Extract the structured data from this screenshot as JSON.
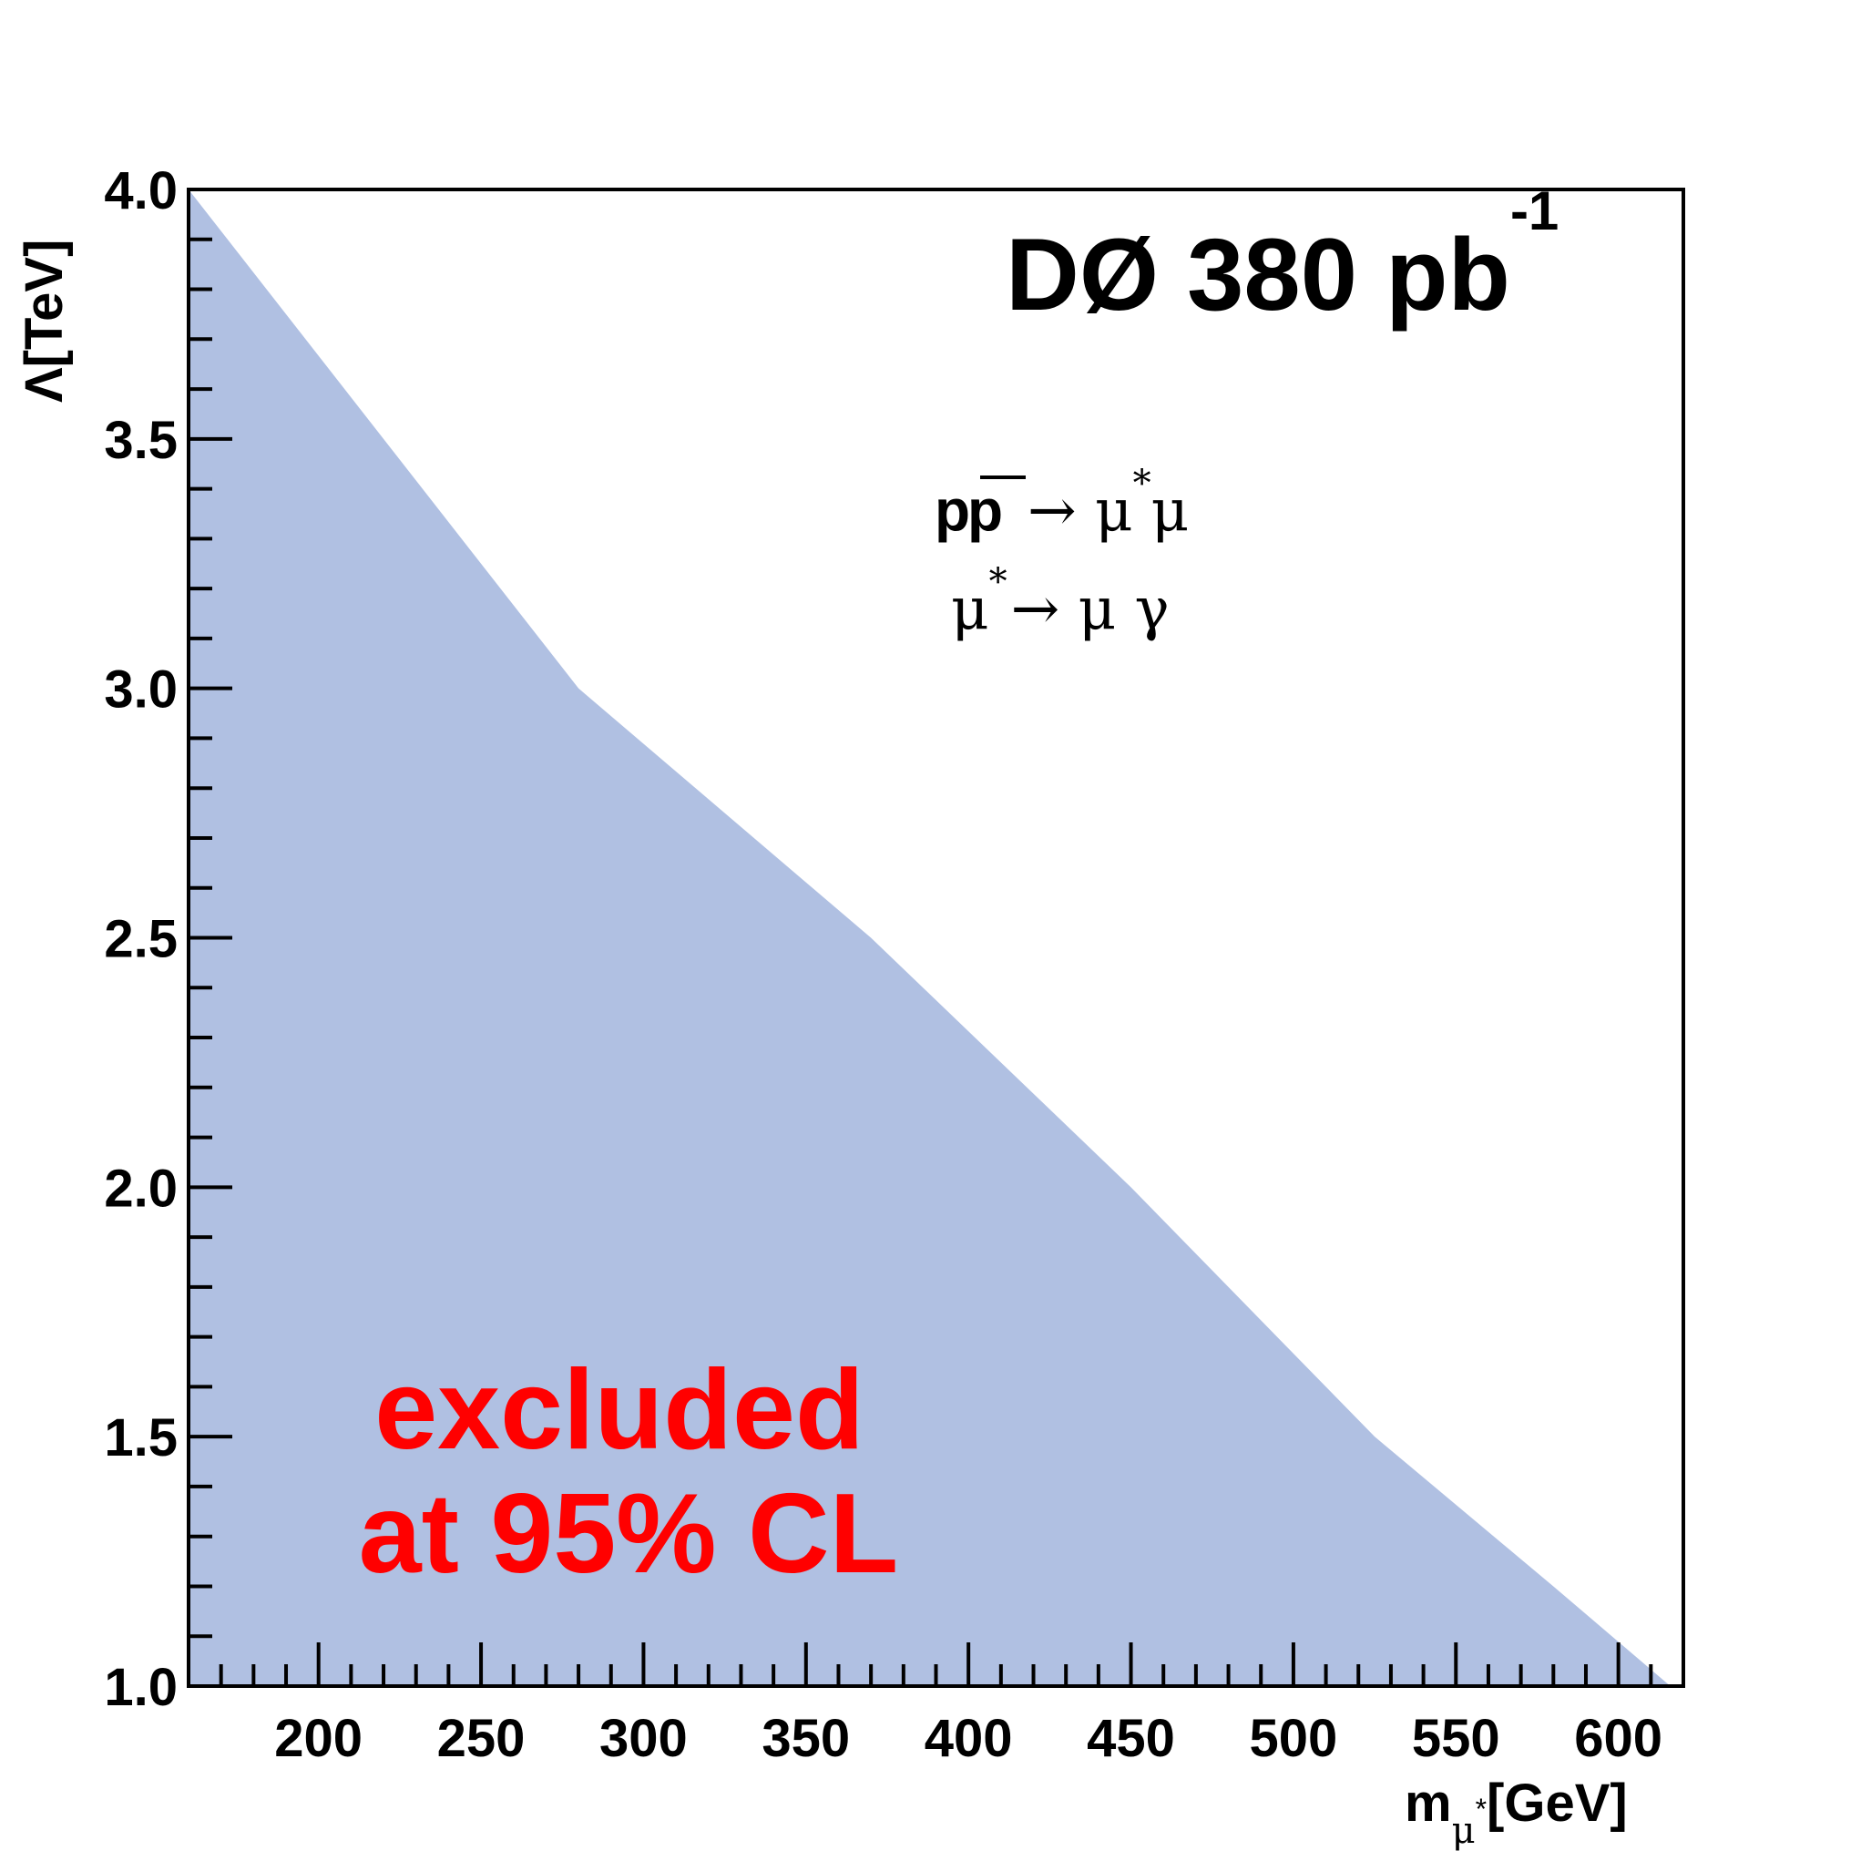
{
  "chart_data": {
    "type": "area",
    "title": "",
    "xlabel": "m",
    "xlabel_sub": "μ",
    "xlabel_sup": "*",
    "xlabel_unit": "[GeV]",
    "ylabel": "Λ[TeV]",
    "xlim": [
      160,
      620
    ],
    "ylim": [
      1.0,
      4.0
    ],
    "x_ticks": [
      "200",
      "250",
      "300",
      "350",
      "400",
      "450",
      "500",
      "550",
      "600"
    ],
    "y_ticks": [
      "1.0",
      "1.5",
      "2.0",
      "2.5",
      "3.0",
      "3.5",
      "4.0"
    ],
    "fill_color": "#b0c0e2",
    "series": [
      {
        "x": [
          160,
          280,
          370,
          450,
          525,
          580,
          616
        ],
        "y": [
          4.0,
          3.0,
          2.5,
          2.0,
          1.5,
          1.2,
          1.0
        ]
      }
    ],
    "grid": false
  },
  "annotations": {
    "experiment_main": "DØ 380 pb",
    "experiment_sup": "-1",
    "process1": {
      "p": "p",
      "pbar": "p",
      "arrow": "→ μ",
      "star": "*",
      "mu": "μ"
    },
    "process2": {
      "mu": "μ",
      "star": "*",
      "rest": "→ μ γ"
    },
    "excluded_line1": "excluded",
    "excluded_line2": "at 95% CL",
    "excluded_color": "#ff0000"
  }
}
